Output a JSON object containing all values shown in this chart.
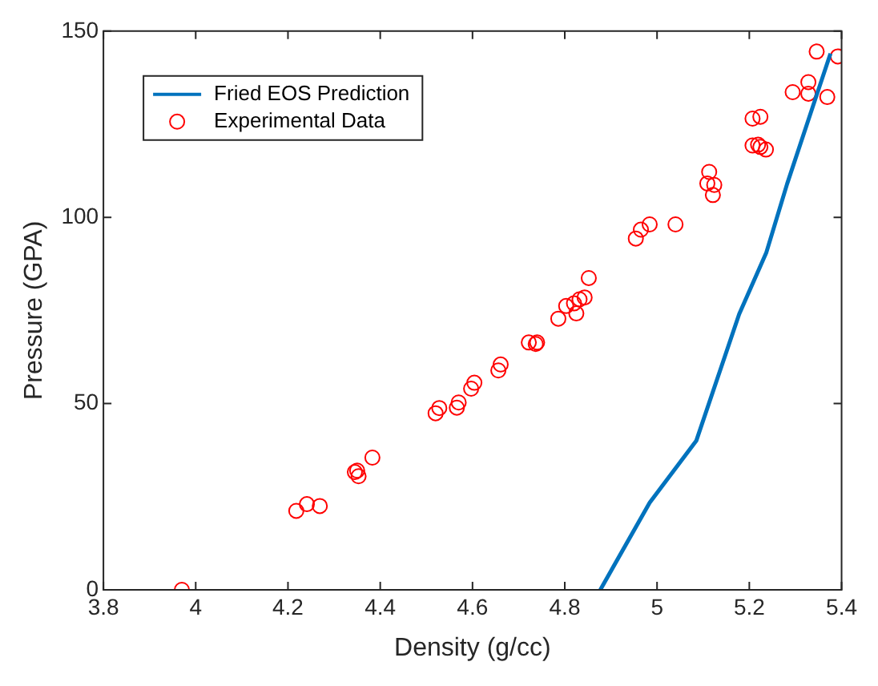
{
  "chart_data": {
    "type": "scatter",
    "xlabel": "Density (g/cc)",
    "ylabel": "Pressure (GPA)",
    "xlim": [
      3.8,
      5.4
    ],
    "xticks": [
      3.8,
      4,
      4.2,
      4.4,
      4.6,
      4.8,
      5,
      5.2,
      5.4
    ],
    "ylim": [
      0,
      150
    ],
    "yticks": [
      0,
      50,
      100,
      150
    ],
    "grid": false,
    "legend": "top left",
    "series": [
      {
        "name": "Fried EOS Prediction",
        "type": "line",
        "color": "#0072bd",
        "marker": "none",
        "line_style": "solid",
        "x": [
          4.877,
          4.984,
          5.085,
          5.178,
          5.237,
          5.282,
          5.376
        ],
        "values": [
          0,
          23.4,
          40,
          74,
          90.6,
          109,
          144
        ]
      },
      {
        "name": "Experimental Data",
        "color": "#ff0000",
        "marker": "circle",
        "x": [
          3.97,
          4.218,
          4.241,
          4.269,
          4.345,
          4.35,
          4.353,
          4.383,
          4.52,
          4.528,
          4.566,
          4.57,
          4.597,
          4.604,
          4.656,
          4.661,
          4.722,
          4.737,
          4.74,
          4.786,
          4.803,
          4.82,
          4.825,
          4.832,
          4.843,
          4.852,
          4.954,
          4.965,
          4.984,
          5.04,
          5.109,
          5.113,
          5.121,
          5.124,
          5.207,
          5.207,
          5.219,
          5.224,
          5.224,
          5.236,
          5.294,
          5.328,
          5.328,
          5.346,
          5.369,
          5.392
        ],
        "values": [
          0,
          21.2,
          23,
          22.5,
          31.6,
          32,
          30.5,
          35.5,
          47.4,
          48.8,
          48.9,
          50.3,
          54,
          55.6,
          58.9,
          60.5,
          66.4,
          66,
          66.4,
          72.8,
          76.2,
          76.9,
          74.2,
          78,
          78.5,
          83.7,
          94.3,
          96.7,
          98.1,
          98.1,
          109.1,
          112.2,
          106,
          108.7,
          119.3,
          126.5,
          119.5,
          127,
          118.9,
          118.2,
          133.6,
          136.3,
          133.2,
          144.5,
          132.3,
          143.2
        ]
      }
    ]
  }
}
